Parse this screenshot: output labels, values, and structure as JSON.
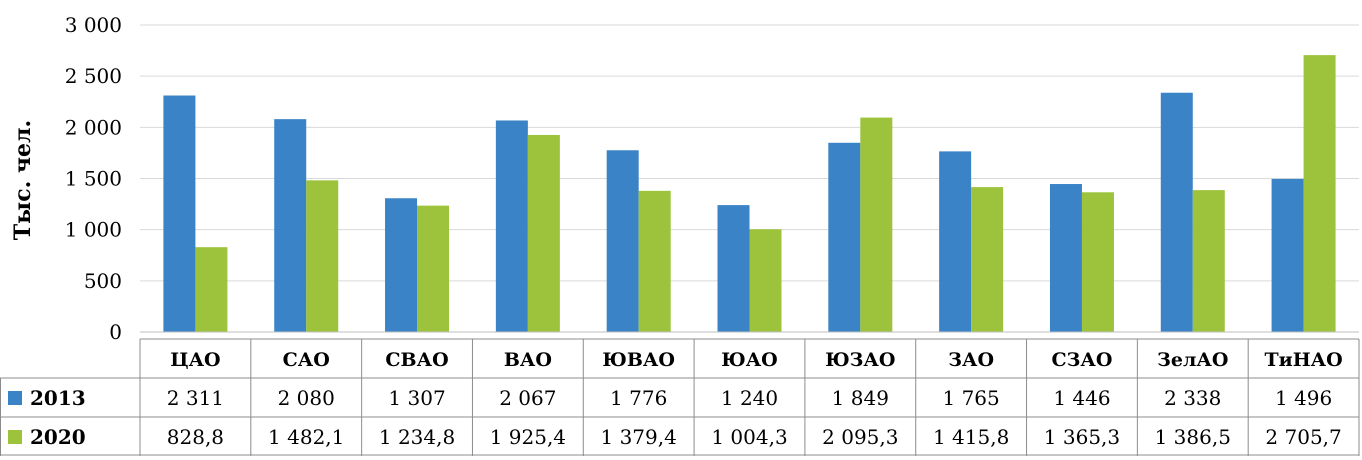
{
  "chart_data": {
    "type": "bar",
    "title": "",
    "xlabel": "",
    "ylabel": "Тыс. чел.",
    "ylim": [
      0,
      3000
    ],
    "y_ticks": [
      {
        "value": 0,
        "label": "0"
      },
      {
        "value": 500,
        "label": "500"
      },
      {
        "value": 1000,
        "label": "1 000"
      },
      {
        "value": 1500,
        "label": "1 500"
      },
      {
        "value": 2000,
        "label": "2 000"
      },
      {
        "value": 2500,
        "label": "2 500"
      },
      {
        "value": 3000,
        "label": "3 000"
      }
    ],
    "grid": true,
    "legend": "data-table",
    "categories": [
      "ЦАО",
      "САО",
      "СВАО",
      "ВАО",
      "ЮВАО",
      "ЮАО",
      "ЮЗАО",
      "ЗАО",
      "СЗАО",
      "ЗелАО",
      "ТиНАО"
    ],
    "series": [
      {
        "name": "2013",
        "color": "#3a83c6",
        "values": [
          2311,
          2080,
          1307,
          2067,
          1776,
          1240,
          1849,
          1765,
          1446,
          2338,
          1496
        ],
        "labels": [
          "2 311",
          "2 080",
          "1 307",
          "2 067",
          "1 776",
          "1 240",
          "1 849",
          "1 765",
          "1 446",
          "2 338",
          "1 496"
        ]
      },
      {
        "name": "2020",
        "color": "#9dc33c",
        "values": [
          828.8,
          1482.1,
          1234.8,
          1925.4,
          1379.4,
          1004.3,
          2095.3,
          1415.8,
          1365.3,
          1386.5,
          2705.7
        ],
        "labels": [
          "828,8",
          "1 482,1",
          "1 234,8",
          "1 925,4",
          "1 379,4",
          "1 004,3",
          "2 095,3",
          "1 415,8",
          "1 365,3",
          "1 386,5",
          "2 705,7"
        ]
      }
    ]
  }
}
